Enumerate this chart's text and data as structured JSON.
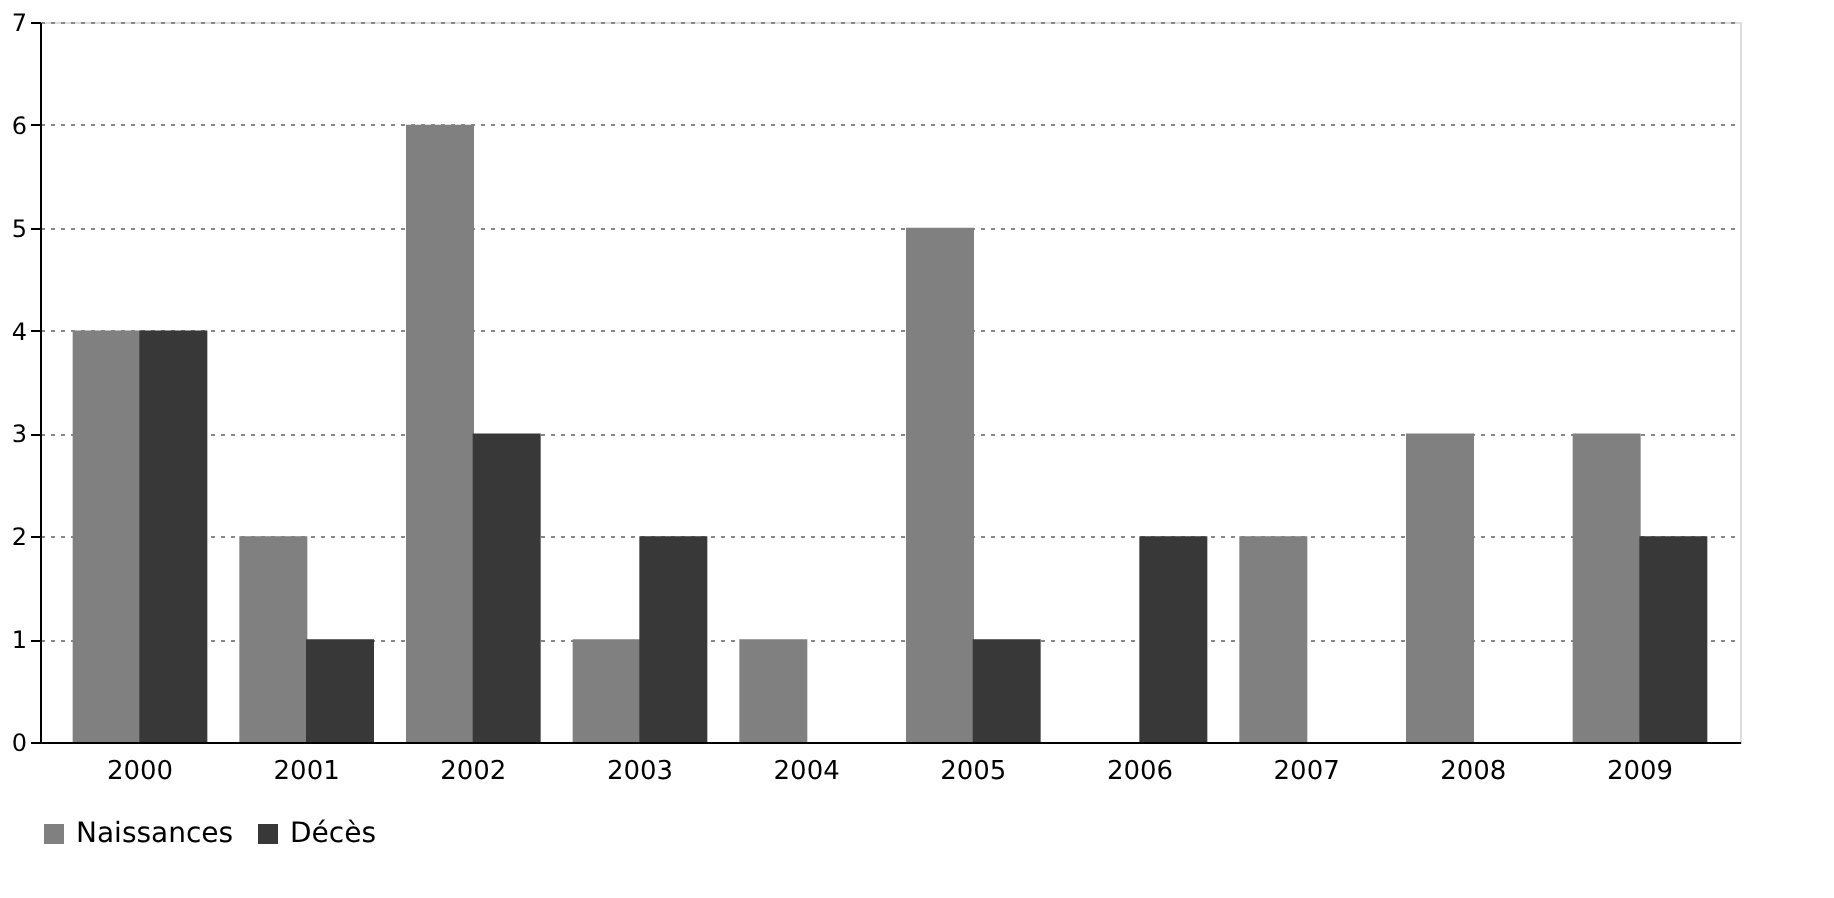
{
  "chart_data": {
    "type": "bar",
    "categories": [
      "2000",
      "2001",
      "2002",
      "2003",
      "2004",
      "2005",
      "2006",
      "2007",
      "2008",
      "2009"
    ],
    "series": [
      {
        "name": "Naissances",
        "color": "#808080",
        "values": [
          4,
          2,
          6,
          1,
          1,
          5,
          0,
          2,
          3,
          3
        ]
      },
      {
        "name": "Décès",
        "color": "#383838",
        "values": [
          4,
          1,
          3,
          2,
          0,
          1,
          2,
          0,
          0,
          2
        ]
      }
    ],
    "ylim": [
      0,
      7
    ],
    "yticks": [
      0,
      1,
      2,
      3,
      4,
      5,
      6,
      7
    ],
    "grid": "y",
    "legend": "bottom"
  }
}
